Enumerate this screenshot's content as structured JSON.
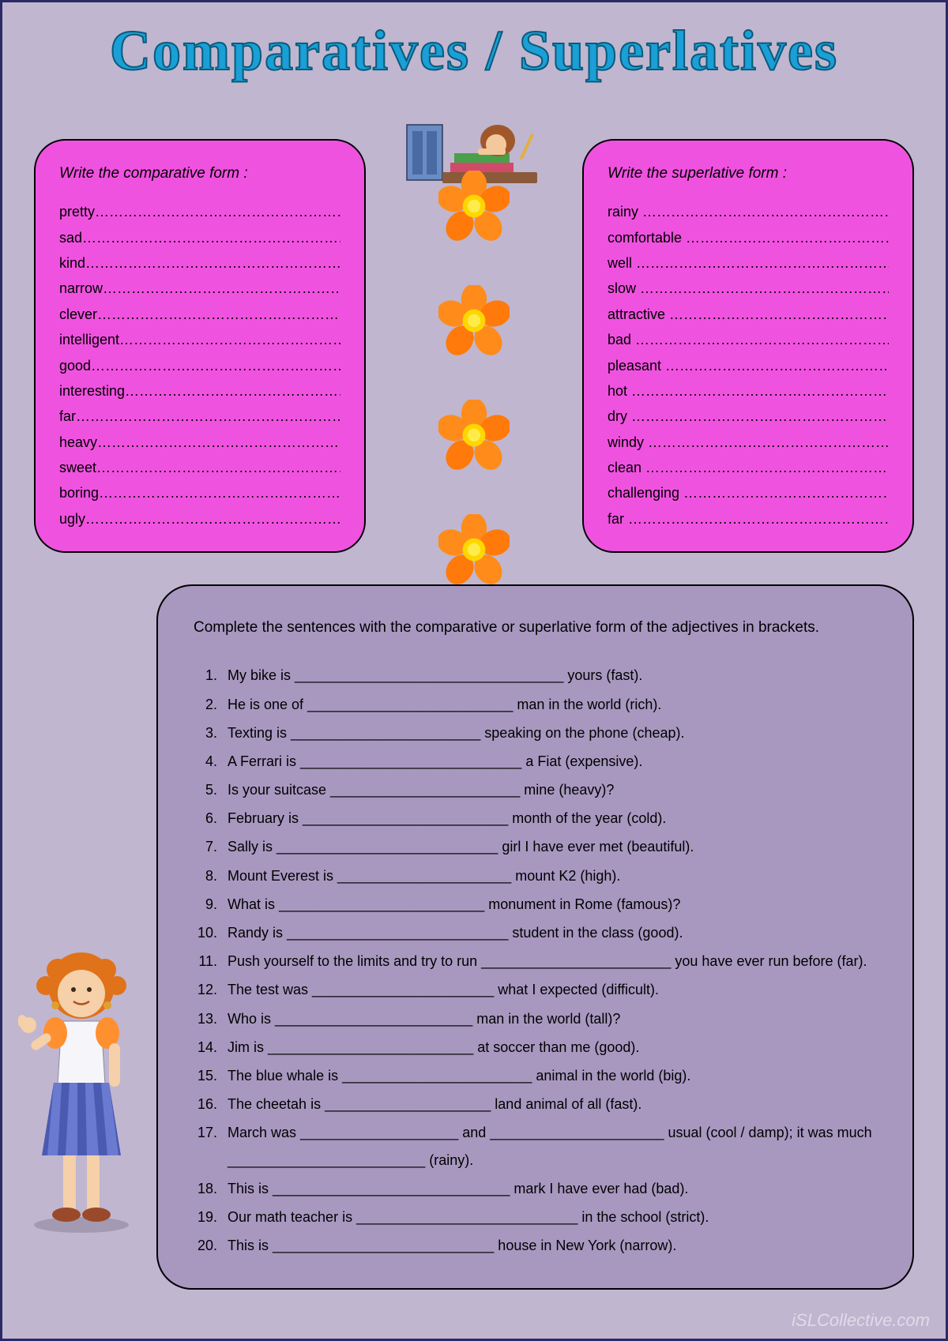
{
  "title": "Comparatives / Superlatives",
  "colors": {
    "page_bg": "#c0b6d0",
    "title_fill": "#1a9fd6",
    "title_stroke": "#0a5a7a",
    "pink_box": "#f052e0",
    "bottom_box": "#a898c0",
    "border": "#2a2a66",
    "flower_petal": "#ff8c1a",
    "flower_center": "#ffd700"
  },
  "comparative_box": {
    "title": "Write the comparative form :",
    "words": [
      "pretty",
      "sad",
      "kind",
      "narrow",
      "clever",
      "intelligent",
      "good",
      "interesting",
      "far",
      "heavy",
      "sweet",
      "boring",
      "ugly"
    ]
  },
  "superlative_box": {
    "title": "Write the superlative form :",
    "words": [
      "rainy",
      "comfortable",
      "well",
      "slow",
      "attractive",
      "bad",
      "pleasant",
      "hot",
      "dry",
      "windy",
      "clean",
      "challenging",
      "far"
    ]
  },
  "exercise": {
    "instruction": "Complete the sentences with the comparative or superlative form of the adjectives in brackets.",
    "items": [
      "My bike is __________________________________ yours (fast).",
      "He is one of __________________________ man in the world (rich).",
      "Texting is ________________________ speaking on the phone (cheap).",
      "A Ferrari is ____________________________ a Fiat (expensive).",
      "Is your suitcase ________________________ mine (heavy)?",
      "February is __________________________ month of the year (cold).",
      "Sally is ____________________________ girl I have ever met (beautiful).",
      "Mount Everest is ______________________ mount K2 (high).",
      "What is __________________________ monument in Rome (famous)?",
      "Randy is ____________________________ student in the class (good).",
      "Push yourself to the limits and try to run ________________________ you have ever run before (far).",
      "The test was _______________________ what I expected (difficult).",
      "Who is _________________________ man in the world (tall)?",
      "Jim is __________________________ at soccer than me (good).",
      "The blue whale is ________________________ animal in the world (big).",
      "The cheetah is _____________________ land animal of all (fast).",
      " March was ____________________ and ______________________ usual (cool / damp); it was much _________________________ (rainy).",
      "This is ______________________________ mark I have ever had (bad).",
      "Our math teacher is ____________________________ in the school (strict).",
      "This is ____________________________ house in New York (narrow)."
    ]
  },
  "watermark": "iSLCollective.com"
}
